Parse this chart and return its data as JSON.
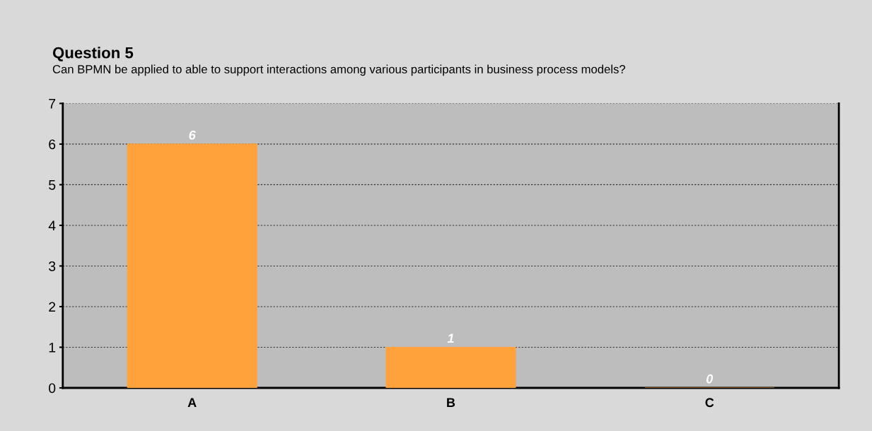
{
  "chart_data": {
    "type": "bar",
    "title": "Question 5",
    "subtitle": "Can BPMN be applied to able to support interactions among various participants in business process models?",
    "categories": [
      "A",
      "B",
      "C"
    ],
    "values": [
      6,
      1,
      0
    ],
    "color": "#ffa23c",
    "ylim": [
      0,
      7
    ],
    "yticks": [
      0,
      1,
      2,
      3,
      4,
      5,
      6,
      7
    ],
    "grid": "y",
    "data_labels": true
  }
}
